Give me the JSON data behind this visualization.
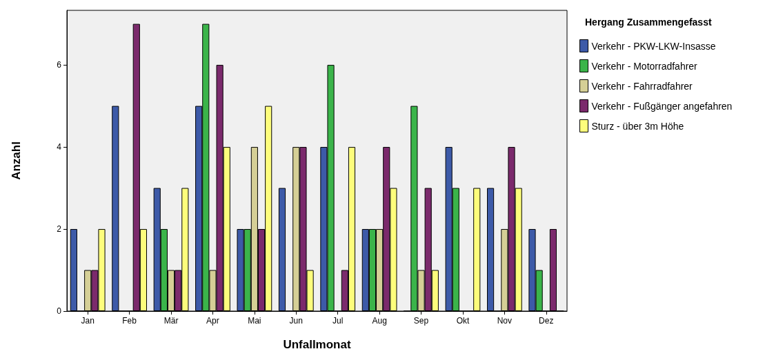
{
  "chart_data": {
    "type": "bar",
    "xlabel": "Unfallmonat",
    "ylabel": "Anzahl",
    "legend_title": "Hergang Zusammengefasst",
    "categories": [
      "Jan",
      "Feb",
      "Mär",
      "Apr",
      "Mai",
      "Jun",
      "Jul",
      "Aug",
      "Sep",
      "Okt",
      "Nov",
      "Dez"
    ],
    "series": [
      {
        "name": "Verkehr - PKW-LKW-Insasse",
        "color": "#3d5aa8",
        "values": [
          2,
          5,
          3,
          5,
          2,
          3,
          4,
          2,
          0,
          4,
          3,
          2
        ]
      },
      {
        "name": "Verkehr - Motorradfahrer",
        "color": "#3bb44a",
        "values": [
          0,
          0,
          2,
          7,
          2,
          0,
          6,
          2,
          5,
          3,
          0,
          1
        ]
      },
      {
        "name": "Verkehr - Fahrradfahrer",
        "color": "#d5cf96",
        "values": [
          1,
          0,
          1,
          1,
          4,
          4,
          0,
          2,
          1,
          0,
          2,
          0
        ]
      },
      {
        "name": "Verkehr - Fußgänger angefahren",
        "color": "#7b2a6c",
        "values": [
          1,
          7,
          1,
          6,
          2,
          4,
          1,
          4,
          3,
          0,
          4,
          2
        ]
      },
      {
        "name": "Sturz - über 3m Höhe",
        "color": "#fdfd7c",
        "values": [
          2,
          2,
          3,
          4,
          5,
          1,
          4,
          3,
          1,
          3,
          3,
          0
        ]
      }
    ],
    "ylim": [
      0,
      7.33
    ],
    "yticks": [
      0,
      2,
      4,
      6
    ],
    "grid": false,
    "legend": "right"
  }
}
